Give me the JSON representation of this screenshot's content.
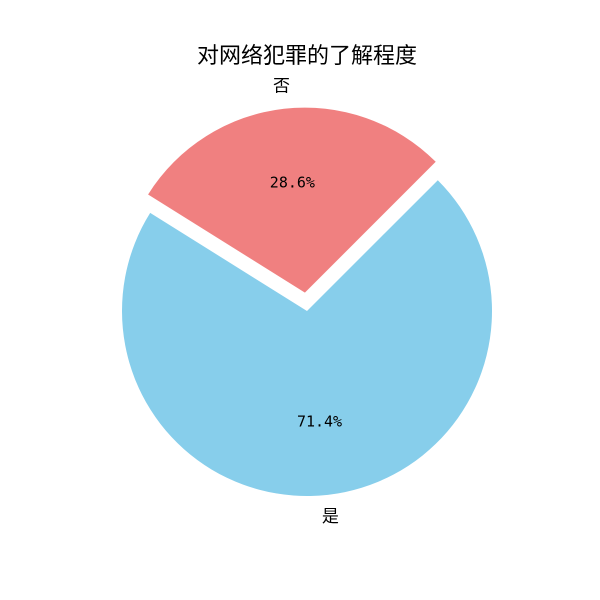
{
  "chart_data": {
    "type": "pie",
    "title": "对网络犯罪的了解程度",
    "slices": [
      {
        "label": "否",
        "value": 28.6,
        "percent_label": "28.6%",
        "color": "#F08080",
        "exploded": true
      },
      {
        "label": "是",
        "value": 71.4,
        "percent_label": "71.4%",
        "color": "#87CEEB",
        "exploded": false
      }
    ]
  }
}
